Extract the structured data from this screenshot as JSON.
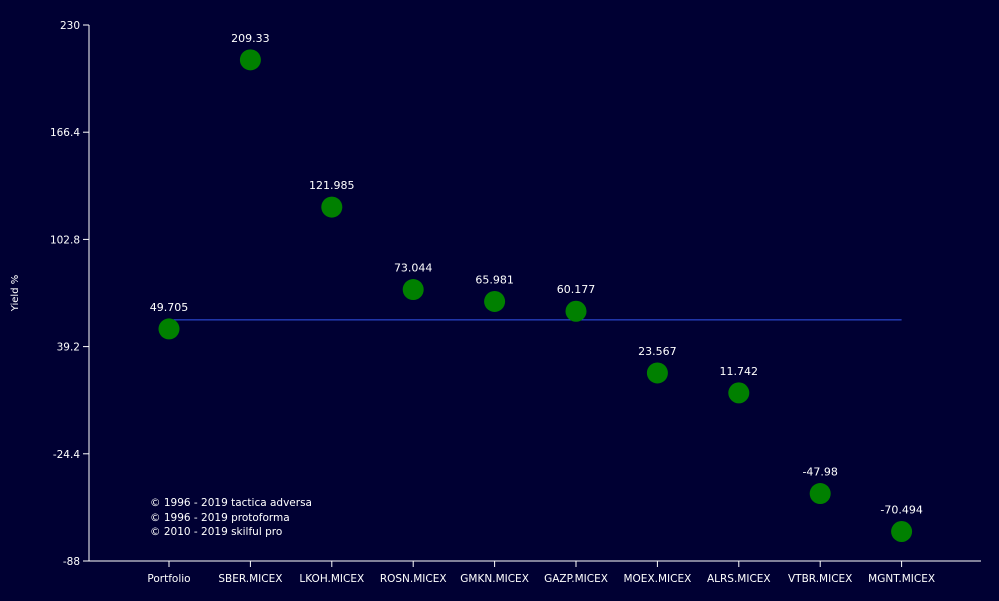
{
  "chart_data": {
    "type": "scatter",
    "title": "",
    "xlabel": "",
    "ylabel": "Yield %",
    "ylim": [
      -88,
      230
    ],
    "yticks": [
      "230",
      "166.4",
      "102.8",
      "39.2",
      "-24.4",
      "-88"
    ],
    "ytick_values": [
      230,
      166.4,
      102.8,
      39.2,
      -24.4,
      -88
    ],
    "categories": [
      "Portfolio",
      "SBER.MICEX",
      "LKOH.MICEX",
      "ROSN.MICEX",
      "GMKN.MICEX",
      "GAZP.MICEX",
      "MOEX.MICEX",
      "ALRS.MICEX",
      "VTBR.MICEX",
      "MGNT.MICEX"
    ],
    "values": [
      49.705,
      209.33,
      121.985,
      73.044,
      65.981,
      60.177,
      23.567,
      11.742,
      -47.98,
      -70.494
    ],
    "value_labels": [
      "49.705",
      "209.33",
      "121.985",
      "73.044",
      "65.981",
      "60.177",
      "23.567",
      "11.742",
      "-47.98",
      "-70.494"
    ],
    "reference_line": {
      "value": 49.705,
      "color": "#3355ee"
    },
    "grid": false,
    "colors": {
      "background": "#000033",
      "axis": "#ffffff",
      "point": "#008000",
      "text": "#ffffff"
    }
  },
  "copyright": [
    "© 1996 - 2019 tactica adversa",
    "© 1996 - 2019 protoforma",
    "© 2010 - 2019 skilful pro"
  ]
}
